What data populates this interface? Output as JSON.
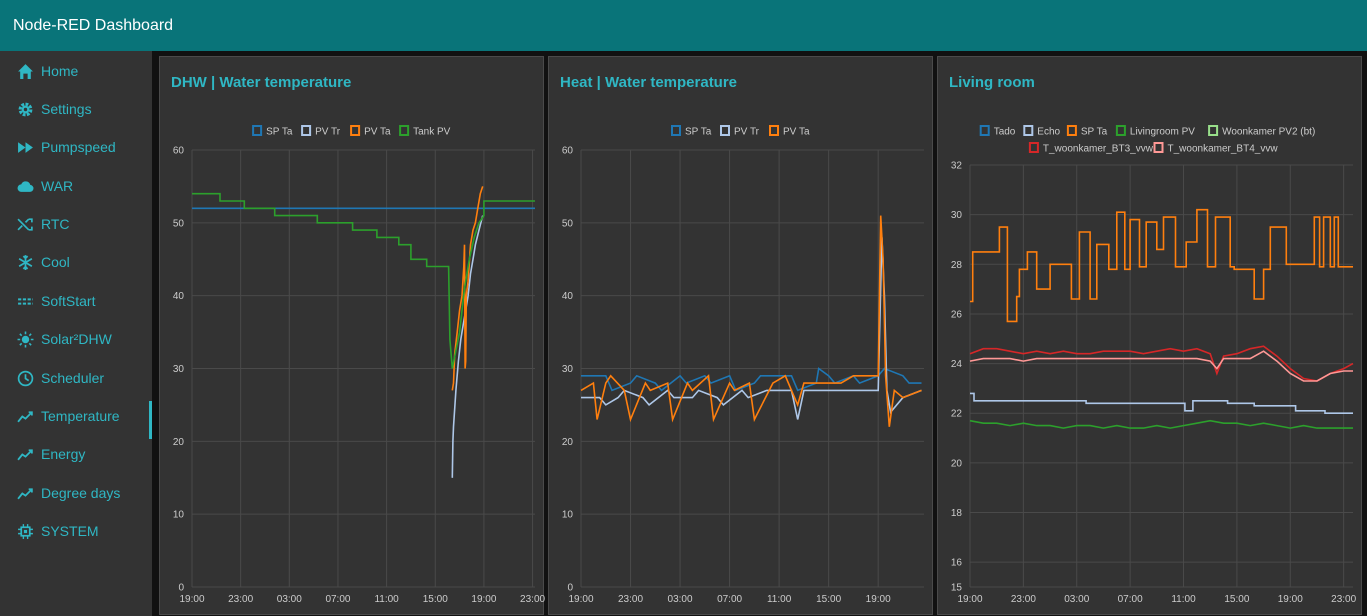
{
  "app": {
    "title": "Node-RED Dashboard"
  },
  "sidebar": {
    "items": [
      {
        "label": "Home",
        "icon": "home-icon"
      },
      {
        "label": "Settings",
        "icon": "gear-icon"
      },
      {
        "label": "Pumpspeed",
        "icon": "fast-forward-icon"
      },
      {
        "label": "WAR",
        "icon": "cloud-icon"
      },
      {
        "label": "RTC",
        "icon": "shuffle-icon"
      },
      {
        "label": "Cool",
        "icon": "snowflake-icon"
      },
      {
        "label": "SoftStart",
        "icon": "dashed-lines-icon"
      },
      {
        "label": "Solar²DHW",
        "icon": "sun-icon"
      },
      {
        "label": "Scheduler",
        "icon": "clock-icon"
      },
      {
        "label": "Temperature",
        "icon": "line-chart-icon",
        "active": true
      },
      {
        "label": "Energy",
        "icon": "line-chart-icon"
      },
      {
        "label": "Degree days",
        "icon": "line-chart-icon"
      },
      {
        "label": "SYSTEM",
        "icon": "chip-icon"
      }
    ]
  },
  "colors": {
    "accent": "#2fb7c4",
    "header": "#097479",
    "card": "#333333"
  },
  "chart_data": [
    {
      "type": "line",
      "title": "DHW | Water temperature",
      "ylim": [
        0,
        60
      ],
      "yticks": [
        0,
        10,
        20,
        30,
        40,
        50,
        60
      ],
      "xticks": [
        "19:00",
        "23:00",
        "03:00",
        "07:00",
        "11:00",
        "15:00",
        "19:00",
        "23:00"
      ],
      "legend": "top-center",
      "grid": true,
      "series": [
        {
          "name": "SP Ta",
          "color": "#1f77b4",
          "x": [
            0,
            28.2
          ],
          "y": [
            52,
            52
          ]
        },
        {
          "name": "PV Tr",
          "color": "#aec7e8",
          "x": [
            21.4,
            21.45,
            21.5,
            21.7,
            21.9,
            22.1,
            22.3,
            22.5,
            22.7,
            22.9,
            23.1,
            23.3,
            23.6,
            23.9
          ],
          "y": [
            15,
            20,
            22,
            27,
            31,
            34,
            36,
            38,
            40,
            43,
            45,
            47,
            49,
            51
          ]
        },
        {
          "name": "PV Ta",
          "color": "#ff7f0e",
          "x": [
            21.4,
            21.5,
            21.6,
            21.8,
            22.0,
            22.2,
            22.35,
            22.4,
            22.45,
            22.5,
            22.55,
            22.7,
            22.9,
            23.1,
            23.3,
            23.5,
            23.7,
            23.9
          ],
          "y": [
            27,
            28,
            32,
            35,
            38,
            40,
            44,
            47,
            30,
            31,
            40,
            42,
            47,
            49,
            50,
            52,
            54,
            55
          ]
        },
        {
          "name": "Tank PV",
          "color": "#2ca02c",
          "x": [
            0,
            2.3,
            2.3,
            4.3,
            4.3,
            6.8,
            6.8,
            10.3,
            10.3,
            13.2,
            13.2,
            15.2,
            15.2,
            17.0,
            17.0,
            18.0,
            18.0,
            19.3,
            19.3,
            21.1,
            21.2,
            21.4,
            22.0,
            22.4,
            22.8,
            23.2,
            23.6,
            24.0,
            24.0,
            28.2
          ],
          "y": [
            54,
            54,
            53,
            53,
            52,
            52,
            51,
            51,
            50,
            50,
            49,
            49,
            48,
            48,
            47,
            47,
            45,
            45,
            44,
            44,
            34,
            30,
            35,
            41,
            45,
            48,
            50,
            51,
            53,
            53
          ]
        }
      ]
    },
    {
      "type": "line",
      "title": "Heat | Water temperature",
      "ylim": [
        0,
        60
      ],
      "yticks": [
        0,
        10,
        20,
        30,
        40,
        50,
        60
      ],
      "xticks": [
        "19:00",
        "23:00",
        "03:00",
        "07:00",
        "11:00",
        "15:00",
        "19:00",
        "23:00"
      ],
      "legend": "top-center",
      "grid": true,
      "series": [
        {
          "name": "SP Ta",
          "color": "#1f77b4",
          "x": [
            0,
            2,
            2.5,
            4,
            4.5,
            6,
            6.5,
            8,
            8.5,
            10,
            10.5,
            12,
            12.5,
            14,
            14.5,
            17,
            17.5,
            19,
            19.2,
            20,
            20.5,
            22,
            22.5,
            24,
            24.5,
            26,
            26.5,
            27.5
          ],
          "y": [
            29,
            29,
            27,
            28,
            29,
            28,
            27,
            29,
            28,
            29,
            28,
            29,
            27,
            28,
            29,
            29,
            27,
            28,
            30,
            29,
            28,
            29,
            28,
            29,
            30,
            29,
            28,
            28
          ]
        },
        {
          "name": "PV Tr",
          "color": "#aec7e8",
          "x": [
            0,
            1.5,
            2,
            3,
            3.5,
            5,
            5.5,
            7,
            7.5,
            9,
            9.5,
            11,
            11.5,
            13,
            13.5,
            15,
            17,
            17.5,
            18,
            19,
            20,
            21,
            22,
            23,
            24,
            24.3,
            24.5,
            24.7,
            25,
            26,
            27.5
          ],
          "y": [
            26,
            26,
            25,
            26,
            27,
            26,
            25,
            27,
            26,
            26,
            27,
            26,
            25,
            27,
            26,
            27,
            27,
            23,
            27,
            27,
            27,
            27,
            27,
            27,
            27,
            48,
            40,
            27,
            24,
            26,
            27
          ]
        },
        {
          "name": "PV Ta",
          "color": "#ff7f0e",
          "x": [
            0,
            1,
            1.3,
            2,
            2.4,
            3.5,
            4,
            5.2,
            5.6,
            7,
            7.4,
            8.6,
            9,
            10.3,
            10.7,
            12,
            12.4,
            13.6,
            14,
            15.5,
            16.5,
            17,
            17.5,
            18,
            19,
            20,
            21,
            22,
            23,
            24,
            24.2,
            24.4,
            24.6,
            24.9,
            25.3,
            26,
            27.5
          ],
          "y": [
            27,
            28,
            23,
            28,
            29,
            27,
            23,
            28,
            27,
            28,
            23,
            28,
            27,
            29,
            23,
            28,
            27,
            28,
            23,
            28,
            29,
            27,
            25,
            28,
            28,
            28,
            28,
            29,
            29,
            29,
            51,
            45,
            29,
            22,
            27,
            26,
            27
          ]
        }
      ]
    },
    {
      "type": "line",
      "title": "Living room",
      "ylim": [
        15,
        32
      ],
      "yticks": [
        15,
        16,
        18,
        20,
        22,
        24,
        26,
        28,
        30,
        32
      ],
      "xticks": [
        "19:00",
        "23:00",
        "03:00",
        "07:00",
        "11:00",
        "15:00",
        "19:00",
        "23:00"
      ],
      "legend": "top-center",
      "grid": true,
      "series": [
        {
          "name": "Tado",
          "color": "#1f77b4",
          "x": [],
          "y": []
        },
        {
          "name": "Echo",
          "color": "#aec7e8",
          "x": [
            0,
            0.3,
            0.3,
            8.7,
            8.7,
            16.1,
            16.1,
            16.7,
            16.7,
            19.3,
            19.3,
            21.3,
            21.3,
            24.4,
            24.4,
            26.6,
            26.6,
            28.7
          ],
          "y": [
            22.8,
            22.8,
            22.5,
            22.5,
            22.4,
            22.4,
            22.1,
            22.1,
            22.5,
            22.5,
            22.4,
            22.4,
            22.3,
            22.3,
            22.1,
            22.1,
            22.0,
            22.0
          ]
        },
        {
          "name": "SP Ta",
          "color": "#ff7f0e",
          "x": [
            0,
            0.2,
            0.2,
            2.2,
            2.2,
            2.8,
            2.8,
            3.5,
            3.5,
            3.7,
            3.7,
            4.3,
            4.3,
            5.0,
            5.0,
            6.0,
            6.0,
            7.6,
            7.6,
            8.2,
            8.2,
            9.0,
            9.0,
            9.5,
            9.5,
            10.4,
            10.4,
            11.0,
            11.0,
            11.6,
            11.6,
            12.0,
            12.0,
            12.7,
            12.7,
            13.2,
            13.2,
            14.0,
            14.0,
            14.5,
            14.5,
            15.4,
            15.4,
            16.2,
            16.2,
            17.0,
            17.0,
            17.8,
            17.8,
            18.4,
            18.4,
            19.5,
            19.5,
            19.8,
            19.8,
            21.3,
            21.3,
            22.0,
            22.0,
            22.5,
            22.5,
            23.7,
            23.7,
            25.8,
            25.8,
            26.2,
            26.2,
            26.5,
            26.5,
            27.0,
            27.0,
            27.3,
            27.3,
            27.6,
            27.6,
            28.0,
            28.0,
            28.7
          ],
          "y": [
            26.5,
            26.5,
            28.5,
            28.5,
            29.5,
            29.5,
            25.7,
            25.7,
            26.7,
            26.7,
            27.8,
            27.8,
            28.5,
            28.5,
            27.0,
            27.0,
            28.0,
            28.0,
            26.6,
            26.6,
            29.3,
            29.3,
            26.6,
            26.6,
            28.8,
            28.8,
            27.8,
            27.8,
            30.1,
            30.1,
            27.8,
            27.8,
            29.8,
            29.8,
            27.9,
            27.9,
            29.7,
            29.7,
            28.6,
            28.6,
            29.9,
            29.9,
            27.9,
            27.9,
            28.9,
            28.9,
            30.2,
            30.2,
            27.9,
            27.9,
            29.9,
            29.9,
            27.9,
            27.9,
            27.8,
            27.8,
            26.6,
            26.6,
            27.8,
            27.8,
            29.5,
            29.5,
            28.0,
            28.0,
            29.9,
            29.9,
            27.9,
            27.9,
            29.9,
            29.9,
            27.9,
            27.9,
            29.9,
            29.9,
            27.9,
            27.9,
            27.9,
            27.9
          ]
        },
        {
          "name": "Livingroom PV",
          "color": "#2ca02c",
          "x": [
            0,
            1,
            2,
            3,
            4,
            5,
            6,
            7,
            8,
            9,
            10,
            11,
            12,
            13,
            14,
            15,
            16,
            17,
            18,
            19,
            20,
            21,
            22,
            23,
            24,
            25,
            26,
            27,
            28.7
          ],
          "y": [
            21.7,
            21.6,
            21.6,
            21.5,
            21.6,
            21.5,
            21.5,
            21.4,
            21.5,
            21.5,
            21.4,
            21.5,
            21.4,
            21.4,
            21.5,
            21.4,
            21.5,
            21.6,
            21.7,
            21.6,
            21.6,
            21.5,
            21.6,
            21.5,
            21.4,
            21.5,
            21.4,
            21.4,
            21.4
          ]
        },
        {
          "name": "Woonkamer PV2 (bt)",
          "color": "#98df8a",
          "x": [],
          "y": []
        },
        {
          "name": "T_woonkamer_BT3_vvw",
          "color": "#d62728",
          "x": [
            0,
            1,
            2,
            3,
            4,
            5,
            6,
            7,
            8,
            9,
            10,
            11,
            12,
            13,
            14,
            15,
            16,
            17,
            18,
            18.5,
            19,
            20,
            21,
            22,
            23,
            24,
            25,
            26,
            27,
            28,
            28.7
          ],
          "y": [
            24.4,
            24.6,
            24.6,
            24.5,
            24.4,
            24.5,
            24.4,
            24.5,
            24.4,
            24.4,
            24.5,
            24.5,
            24.5,
            24.4,
            24.5,
            24.6,
            24.5,
            24.6,
            24.4,
            23.6,
            24.3,
            24.4,
            24.6,
            24.7,
            24.3,
            23.8,
            23.4,
            23.3,
            23.6,
            23.8,
            24.0
          ]
        },
        {
          "name": "T_woonkamer_BT4_vvw",
          "color": "#ff9896",
          "x": [
            0,
            1,
            2,
            3,
            4,
            5,
            6,
            7,
            8,
            9,
            10,
            11,
            12,
            13,
            14,
            15,
            16,
            17,
            18,
            18.5,
            19,
            20,
            21,
            22,
            23,
            24,
            25,
            26,
            27,
            28,
            28.7
          ],
          "y": [
            24.1,
            24.2,
            24.2,
            24.2,
            24.1,
            24.2,
            24.2,
            24.2,
            24.2,
            24.2,
            24.2,
            24.2,
            24.2,
            24.2,
            24.2,
            24.2,
            24.2,
            24.2,
            24.1,
            23.8,
            24.2,
            24.2,
            24.2,
            24.5,
            24.1,
            23.6,
            23.3,
            23.3,
            23.6,
            23.7,
            23.7
          ]
        }
      ]
    }
  ]
}
